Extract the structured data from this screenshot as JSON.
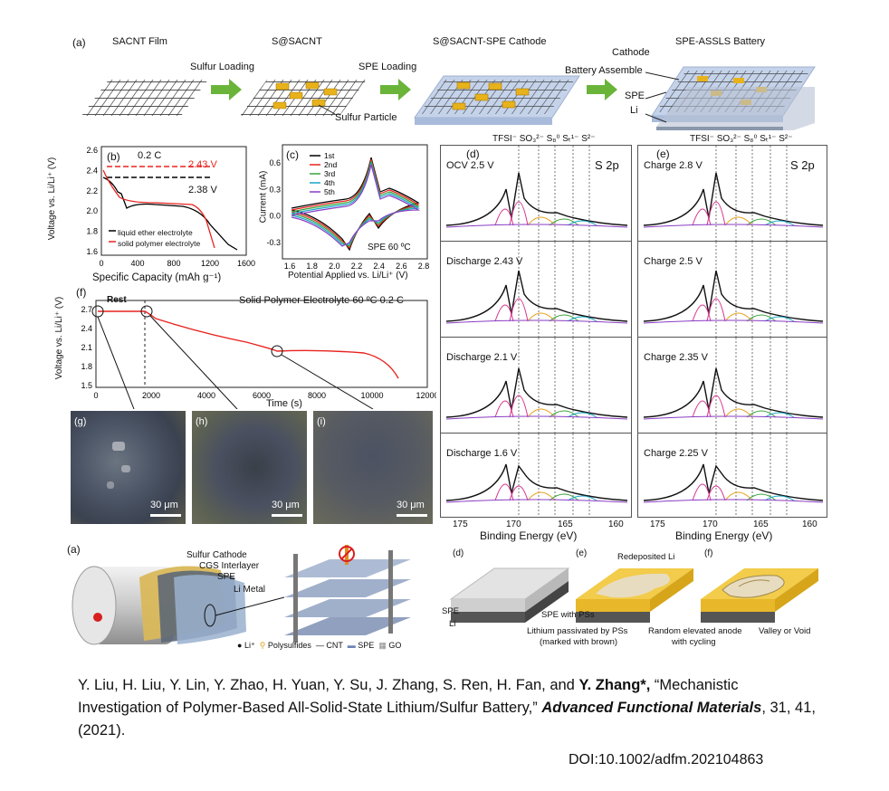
{
  "figure_a_top": {
    "panel_label": "(a)",
    "titles": [
      "SACNT Film",
      "S@SACNT",
      "S@SACNT-SPE Cathode",
      "SPE-ASSLS Battery"
    ],
    "arrows": [
      "Sulfur Loading",
      "SPE Loading",
      "Battery Assemble"
    ],
    "callouts": {
      "sulfur_particle": "Sulfur Particle",
      "cathode": "Cathode",
      "spe": "SPE",
      "li": "Li"
    }
  },
  "panel_b": {
    "label": "(b)",
    "rate": "0.2 C",
    "v1": "2.43 V",
    "v2": "2.38 V",
    "legend": [
      "liquid ether electrolyte",
      "solid polymer electrolyte"
    ],
    "xlabel": "Specific Capacity (mAh g⁻¹)",
    "ylabel": "Voltage vs. Li/Li⁺ (V)",
    "xticks": [
      "0",
      "400",
      "800",
      "1200",
      "1600"
    ],
    "yticks": [
      "1.6",
      "1.8",
      "2.0",
      "2.2",
      "2.4",
      "2.6"
    ],
    "colors": {
      "liquid": "#000000",
      "solid": "#e8231f"
    }
  },
  "panel_c": {
    "label": "(c)",
    "annotation": "SPE 60 ºC",
    "legend": [
      "1st",
      "2nd",
      "3rd",
      "4th",
      "5th"
    ],
    "legend_colors": [
      "#000000",
      "#e8231f",
      "#3aa23a",
      "#1aa6c9",
      "#8a3cc4"
    ],
    "xlabel": "Potential Applied vs. Li/Li⁺  (V)",
    "ylabel": "Current (mA)",
    "xticks": [
      "1.6",
      "1.8",
      "2.0",
      "2.2",
      "2.4",
      "2.6",
      "2.8"
    ],
    "yticks": [
      "-0.3",
      "0.0",
      "0.3",
      "0.6"
    ]
  },
  "panel_f": {
    "label": "(f)",
    "rest": "Rest",
    "title": "Solid Polymer Electrolyte 60 ºC  0.2 C",
    "xlabel": "Time (s)",
    "ylabel": "Voltage vs. Li/Li⁺ (V)",
    "xticks": [
      "0",
      "2000",
      "4000",
      "6000",
      "8000",
      "10000",
      "12000"
    ],
    "yticks": [
      "1.5",
      "1.8",
      "2.1",
      "2.4",
      "2.7"
    ]
  },
  "photos": [
    {
      "label": "(g)",
      "scale": "30 μm"
    },
    {
      "label": "(h)",
      "scale": "30 μm"
    },
    {
      "label": "(i)",
      "scale": "30 μm"
    }
  ],
  "xps_d": {
    "label": "(d)",
    "s2p": "S 2p",
    "header": "TFSI⁻ SO₃²⁻ S₈⁰ Sₜ¹⁻ S²⁻",
    "rows": [
      "OCV 2.5 V",
      "Discharge 2.43 V",
      "Discharge 2.1 V",
      "Discharge 1.6 V"
    ],
    "xticks": [
      "175",
      "170",
      "165",
      "160"
    ],
    "xlabel": "Binding Energy (eV)"
  },
  "xps_e": {
    "label": "(e)",
    "s2p": "S 2p",
    "header": "TFSI⁻ SO₃²⁻ S₈⁰ Sₜ¹⁻ S²⁻",
    "rows": [
      "Charge 2.8 V",
      "Charge 2.5 V",
      "Charge 2.35 V",
      "Charge 2.25 V"
    ],
    "xticks": [
      "175",
      "170",
      "165",
      "160"
    ],
    "xlabel": "Binding Energy (eV)"
  },
  "figure_a_bottom": {
    "label": "(a)",
    "layers": [
      "Sulfur Cathode",
      "CGS Interlayer",
      "SPE",
      "Li Metal"
    ],
    "legend": [
      "Li⁺",
      "Polysulfides",
      "CNT",
      "SPE",
      "GO"
    ]
  },
  "figure_def": {
    "labels": [
      "(d)",
      "(e)",
      "(f)"
    ],
    "d_layers": [
      "SPE",
      "Li"
    ],
    "e_callouts": [
      "Redeposited Li",
      "SPE with PSs",
      "Lithium passivated by PSs",
      "(marked with brown)"
    ],
    "f_callouts": [
      "Random elevated anode",
      "with cycling",
      "Valley or Void"
    ]
  },
  "citation": {
    "authors": "Y. Liu, H. Liu, Y. Lin, Y. Zhao, H. Yuan, Y. Su, J. Zhang, S. Ren, H. Fan, and ",
    "highlight_author": "Y. Zhang*,",
    "title": " “Mechanistic Investigation of Polymer-Based All-Solid-State Lithium/Sulfur Battery,” ",
    "journal": "Advanced Functional Materials",
    "tail": ", 31, 41, (2021).",
    "doi": "DOI:10.1002/adfm.202104863"
  }
}
